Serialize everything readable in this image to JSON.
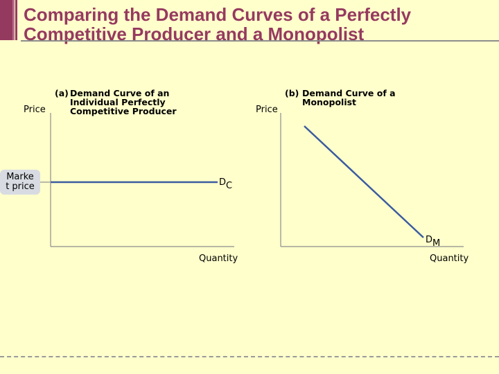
{
  "slide": {
    "title_line1": "Comparing the Demand Curves of a Perfectly",
    "title_line2": "Competitive Producer and a Monopolist"
  },
  "panel_a": {
    "tag": "(a)",
    "heading": "Demand Curve of an\nIndividual Perfectly\nCompetitive Producer",
    "y_axis_label": "Price",
    "x_axis_label": "Quantity",
    "curve_label": "D",
    "curve_label_sub": "C",
    "market_price_label": "Marke\nt price",
    "curve_shape": "horizontal"
  },
  "panel_b": {
    "tag": "(b)",
    "heading": "Demand Curve of a\nMonopolist",
    "y_axis_label": "Price",
    "x_axis_label": "Quantity",
    "curve_label": "D",
    "curve_label_sub": "M",
    "curve_shape": "downward-sloping"
  },
  "colors": {
    "background": "#ffffcc",
    "title": "#953a5f",
    "curve": "#3a5ba0",
    "axis": "#8c8c8c"
  }
}
